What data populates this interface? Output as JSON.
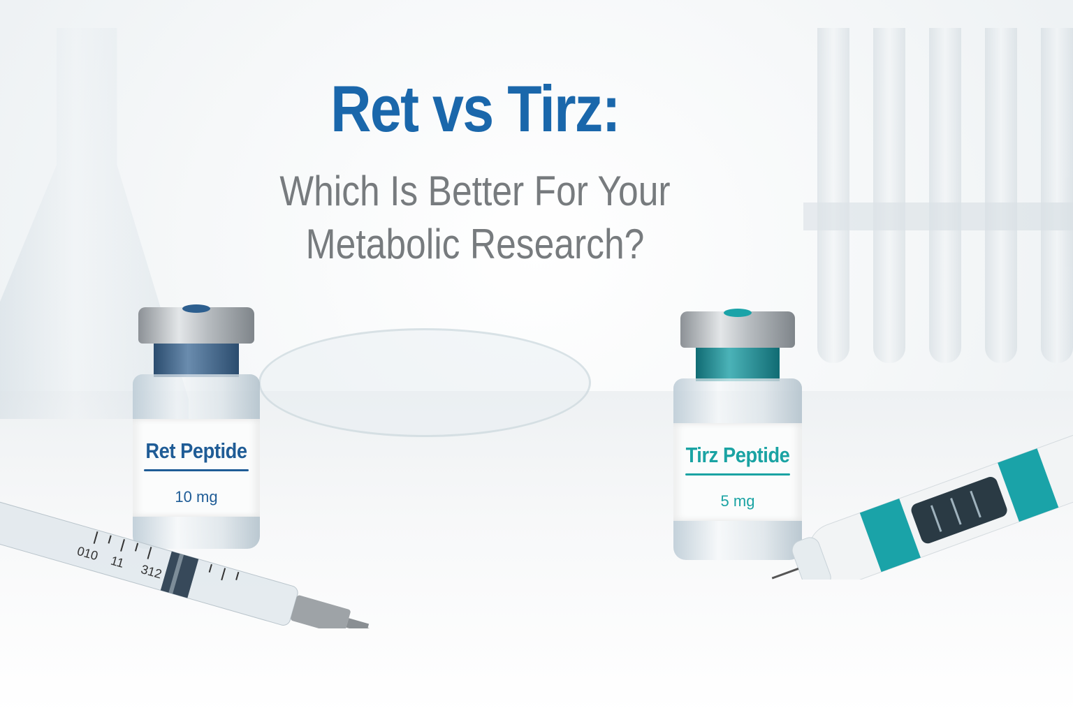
{
  "title": {
    "main": "Ret vs Tirz:",
    "subtitle_line1": "Which Is Better For Your",
    "subtitle_line2": "Metabolic Research?"
  },
  "vials": [
    {
      "name": "Ret Peptide",
      "dose": "10 mg",
      "color": "#1f5c96"
    },
    {
      "name": "Tirz Peptide",
      "dose": "5 mg",
      "color": "#1aa3a3"
    }
  ],
  "syringe_markings": [
    "010",
    "11",
    "312"
  ],
  "colors": {
    "title": "#1a67ab",
    "subtitle": "#777b7e",
    "pen_accent": "#1aa3a8"
  }
}
